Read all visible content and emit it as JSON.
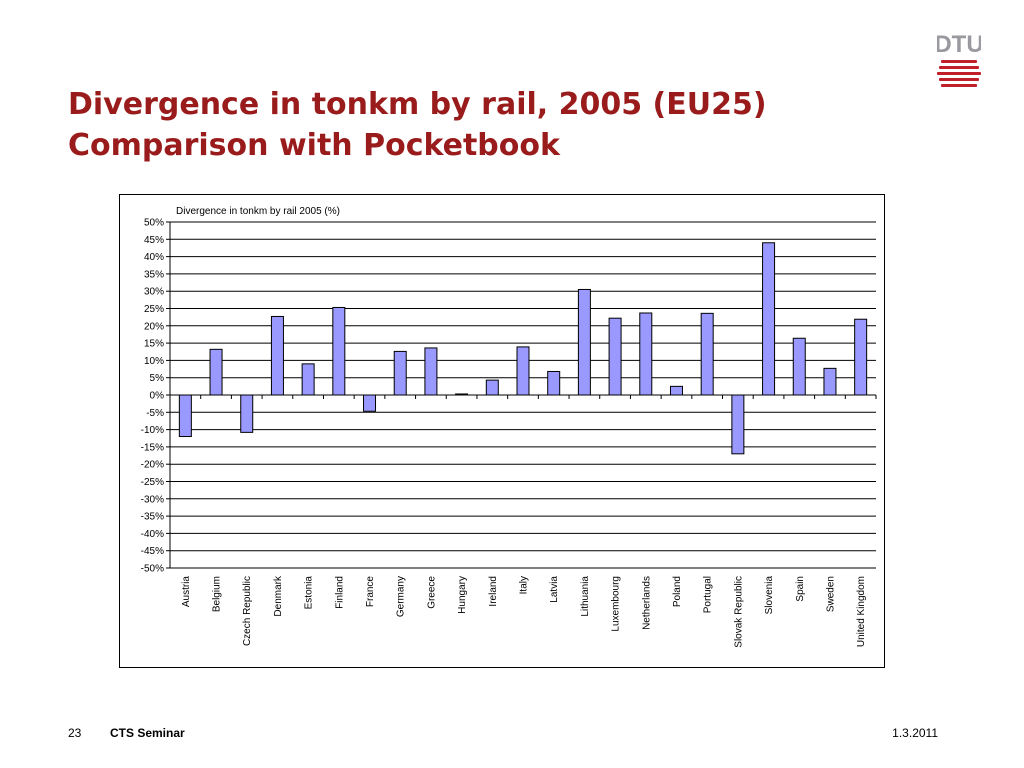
{
  "slide": {
    "title_line1": "Divergence in tonkm by rail, 2005 (EU25)",
    "title_line2": "Comparison with Pocketbook",
    "logo_text": "DTU",
    "page_number": "23",
    "event": "CTS Seminar",
    "date": "1.3.2011",
    "colors": {
      "title": "#9a1b1b",
      "bar_fill": "#9999ff",
      "logo": "#99999f",
      "logo_accent": "#c0202a"
    }
  },
  "chart_data": {
    "type": "bar",
    "title": "Divergence in tonkm by rail 2005 (%)",
    "categories": [
      "Austria",
      "Belgium",
      "Czech Republic",
      "Denmark",
      "Estonia",
      "Finland",
      "France",
      "Germany",
      "Greece",
      "Hungary",
      "Ireland",
      "Italy",
      "Latvia",
      "Lithuania",
      "Luxembourg",
      "Netherlands",
      "Poland",
      "Portugal",
      "Slovak Republic",
      "Slovenia",
      "Spain",
      "Sweden",
      "United Kingdom"
    ],
    "values": [
      -12,
      13.2,
      -10.8,
      22.7,
      9,
      25.3,
      -4.7,
      12.6,
      13.6,
      0.3,
      4.3,
      13.9,
      6.8,
      30.5,
      22.2,
      23.7,
      2.5,
      23.6,
      -17,
      44,
      16.4,
      7.7,
      21.9
    ],
    "ylim": [
      -50,
      50
    ],
    "ytick_step": 5,
    "ytick_labels": [
      "50%",
      "45%",
      "40%",
      "35%",
      "30%",
      "25%",
      "20%",
      "15%",
      "10%",
      "5%",
      "0%",
      "-5%",
      "-10%",
      "-15%",
      "-20%",
      "-25%",
      "-30%",
      "-35%",
      "-40%",
      "-45%",
      "-50%"
    ],
    "xlabel": "",
    "ylabel": "",
    "grid": true,
    "legend": "none"
  }
}
